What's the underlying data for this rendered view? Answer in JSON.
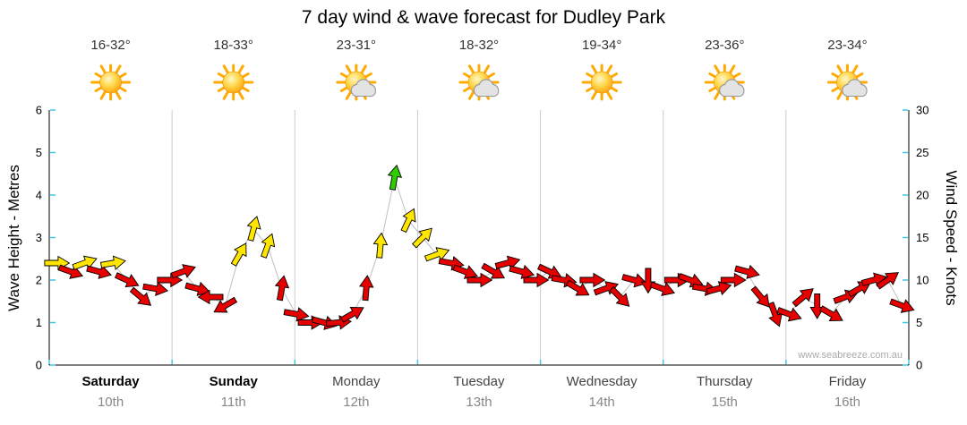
{
  "title": "7 day wind & wave forecast for Dudley Park",
  "watermark": "www.seabreeze.com.au",
  "axes": {
    "left_label": "Wave Height - Metres",
    "right_label": "Wind Speed - Knots",
    "left_ticks": [
      0,
      1,
      2,
      3,
      4,
      5,
      6
    ],
    "right_ticks": [
      0,
      5,
      10,
      15,
      20,
      25,
      30
    ],
    "left_range": [
      0,
      6
    ],
    "right_range": [
      0,
      30
    ]
  },
  "colors": {
    "tick": "#3fc8e6",
    "gridline": "#cccccc",
    "axis": "#000000",
    "trend_line": "#bfbfbf",
    "arrow_outline": "#000000",
    "red": "#e60000",
    "yellow": "#ffe600",
    "green": "#2ecc00"
  },
  "days": [
    {
      "name": "Saturday",
      "date": "10th",
      "temp": "16-32°",
      "icon": "sun",
      "weekend": true
    },
    {
      "name": "Sunday",
      "date": "11th",
      "temp": "18-33°",
      "icon": "sun",
      "weekend": true
    },
    {
      "name": "Monday",
      "date": "12th",
      "temp": "23-31°",
      "icon": "sun-cloud",
      "weekend": false
    },
    {
      "name": "Tuesday",
      "date": "13th",
      "temp": "18-32°",
      "icon": "sun-cloud",
      "weekend": false
    },
    {
      "name": "Wednesday",
      "date": "14th",
      "temp": "19-34°",
      "icon": "sun",
      "weekend": false
    },
    {
      "name": "Thursday",
      "date": "15th",
      "temp": "23-36°",
      "icon": "sun-cloud",
      "weekend": false
    },
    {
      "name": "Friday",
      "date": "16th",
      "temp": "23-34°",
      "icon": "sun-cloud",
      "weekend": false
    }
  ],
  "chart_data": {
    "type": "scatter",
    "subtype": "wind-direction-arrows",
    "title": "7 day wind & wave forecast for Dudley Park",
    "x_categories": [
      "Saturday 10th",
      "Sunday 11th",
      "Monday 12th",
      "Tuesday 13th",
      "Wednesday 14th",
      "Thursday 15th",
      "Friday 16th"
    ],
    "ylabel_left": "Wave Height - Metres",
    "ylabel_right": "Wind Speed - Knots",
    "ylim_left_metres": [
      0,
      6
    ],
    "ylim_right_knots": [
      0,
      30
    ],
    "legend": "none",
    "grid": "vertical-day-boundaries",
    "points_format": [
      "wind_knots",
      "direction_deg",
      "color"
    ],
    "points": [
      [
        12,
        0,
        "yellow"
      ],
      [
        11,
        20,
        "red"
      ],
      [
        12,
        -20,
        "yellow"
      ],
      [
        11,
        15,
        "red"
      ],
      [
        12,
        -10,
        "yellow"
      ],
      [
        10,
        25,
        "red"
      ],
      [
        8,
        40,
        "red"
      ],
      [
        9,
        10,
        "red"
      ],
      [
        10,
        0,
        "red"
      ],
      [
        11,
        -20,
        "red"
      ],
      [
        9,
        15,
        "red"
      ],
      [
        8,
        180,
        "red"
      ],
      [
        7,
        150,
        "red"
      ],
      [
        13,
        -60,
        "yellow"
      ],
      [
        16,
        -75,
        "yellow"
      ],
      [
        14,
        -70,
        "yellow"
      ],
      [
        9,
        -80,
        "red"
      ],
      [
        6,
        10,
        "red"
      ],
      [
        5,
        0,
        "red"
      ],
      [
        5,
        15,
        "red"
      ],
      [
        5,
        -5,
        "red"
      ],
      [
        6,
        -30,
        "red"
      ],
      [
        9,
        -85,
        "red"
      ],
      [
        14,
        -85,
        "yellow"
      ],
      [
        22,
        -80,
        "green"
      ],
      [
        17,
        -65,
        "yellow"
      ],
      [
        15,
        -45,
        "yellow"
      ],
      [
        13,
        -20,
        "yellow"
      ],
      [
        12,
        10,
        "red"
      ],
      [
        11,
        20,
        "red"
      ],
      [
        10,
        0,
        "red"
      ],
      [
        11,
        30,
        "red"
      ],
      [
        12,
        -15,
        "red"
      ],
      [
        11,
        15,
        "red"
      ],
      [
        10,
        0,
        "red"
      ],
      [
        11,
        25,
        "red"
      ],
      [
        10,
        10,
        "red"
      ],
      [
        9,
        30,
        "red"
      ],
      [
        10,
        0,
        "red"
      ],
      [
        9,
        -20,
        "red"
      ],
      [
        8,
        45,
        "red"
      ],
      [
        10,
        15,
        "red"
      ],
      [
        10,
        90,
        "red"
      ],
      [
        9,
        20,
        "red"
      ],
      [
        10,
        0,
        "red"
      ],
      [
        10,
        20,
        "red"
      ],
      [
        9,
        10,
        "red"
      ],
      [
        9,
        -15,
        "red"
      ],
      [
        10,
        0,
        "red"
      ],
      [
        11,
        15,
        "red"
      ],
      [
        8,
        50,
        "red"
      ],
      [
        6,
        70,
        "red"
      ],
      [
        6,
        20,
        "red"
      ],
      [
        8,
        -40,
        "red"
      ],
      [
        7,
        90,
        "red"
      ],
      [
        6,
        30,
        "red"
      ],
      [
        8,
        -20,
        "red"
      ],
      [
        9,
        -30,
        "red"
      ],
      [
        10,
        -15,
        "red"
      ],
      [
        10,
        -35,
        "red"
      ],
      [
        7,
        20,
        "red"
      ]
    ]
  }
}
